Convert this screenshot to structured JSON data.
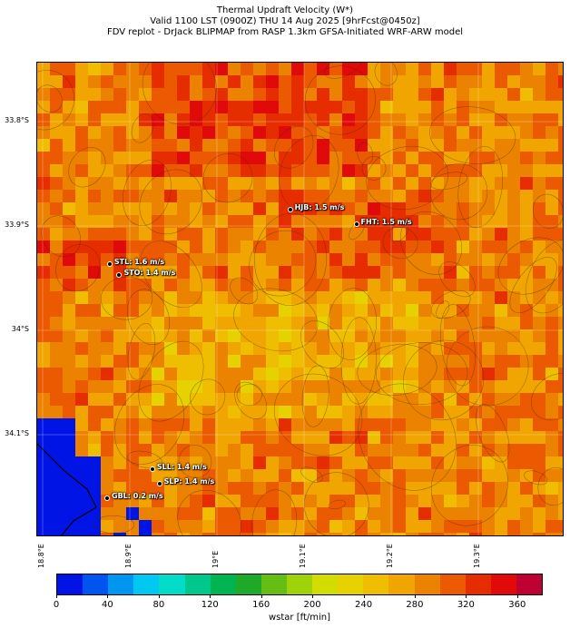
{
  "title": {
    "line1": "Thermal Updraft Velocity (W*)",
    "line2": "Valid 1100 LST (0900Z) THU 14 Aug 2025 [9hrFcst@0450z]",
    "line3": "FDV replot - DrJack BLIPMAP from RASP 1.3km GFSA-Initiated WRF-ARW model"
  },
  "map": {
    "lat_labels": [
      {
        "text": "33.8°S",
        "lat": -33.8
      },
      {
        "text": "33.9°S",
        "lat": -33.9
      },
      {
        "text": "34°S",
        "lat": -34.0
      },
      {
        "text": "34.1°S",
        "lat": -34.1
      }
    ],
    "lon_labels": [
      {
        "text": "18.8°E",
        "lon": 18.8
      },
      {
        "text": "18.9°E",
        "lon": 18.9
      },
      {
        "text": "19°E",
        "lon": 19.0
      },
      {
        "text": "19.1°E",
        "lon": 19.1
      },
      {
        "text": "19.2°E",
        "lon": 19.2
      },
      {
        "text": "19.3°E",
        "lon": 19.3
      }
    ],
    "stations": [
      {
        "id": "HJB",
        "label": "HJB: 1.5 m/s",
        "lat": -33.885,
        "lon": 19.085
      },
      {
        "id": "FHT",
        "label": "FHT: 1.5 m/s",
        "lat": -33.899,
        "lon": 19.161
      },
      {
        "id": "STL",
        "label": "STL: 1.6 m/s",
        "lat": -33.937,
        "lon": 18.878
      },
      {
        "id": "STO",
        "label": "STO: 1.4 m/s",
        "lat": -33.948,
        "lon": 18.889
      },
      {
        "id": "SLL",
        "label": "SLL: 1.4 m/s",
        "lat": -34.134,
        "lon": 18.927
      },
      {
        "id": "SLP",
        "label": "SLP: 1.4 m/s",
        "lat": -34.148,
        "lon": 18.935
      },
      {
        "id": "GBL",
        "label": "GBL: 0.2 m/s",
        "lat": -34.162,
        "lon": 18.875
      }
    ]
  },
  "colorbar": {
    "label": "wstar [ft/min]",
    "colors": [
      "#0014e6",
      "#0055ee",
      "#0096f0",
      "#00c8f0",
      "#00dcc8",
      "#00c88c",
      "#00b450",
      "#1eaa28",
      "#64be14",
      "#a0d20a",
      "#d2dc00",
      "#e6d200",
      "#f0be00",
      "#f0a500",
      "#eb8200",
      "#eb5a00",
      "#e62d00",
      "#e10a0a",
      "#be0032"
    ],
    "ticks": [
      "0",
      "40",
      "80",
      "120",
      "160",
      "200",
      "240",
      "280",
      "320",
      "360"
    ],
    "min": 0,
    "max": 380
  }
}
